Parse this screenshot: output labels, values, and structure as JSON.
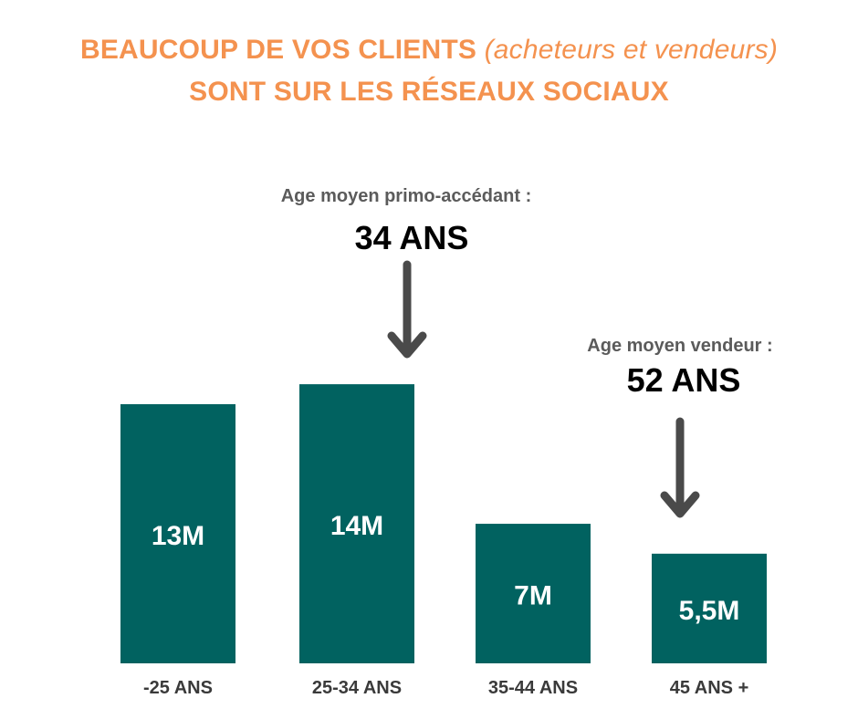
{
  "heading": {
    "line1_bold": "BEAUCOUP DE VOS CLIENTS",
    "line1_italic": "(acheteurs et vendeurs)",
    "line2": "SONT SUR LES RÉSEAUX SOCIAUX"
  },
  "annotations": [
    {
      "label": "Age moyen primo-accédant :",
      "value": "34 ANS",
      "points_to": "25-34 ANS"
    },
    {
      "label": "Age moyen vendeur :",
      "value": "52 ANS",
      "points_to": "45 ANS +"
    }
  ],
  "chart_data": {
    "type": "bar",
    "categories": [
      "-25 ANS",
      "25-34 ANS",
      "35-44 ANS",
      "45 ANS +"
    ],
    "values": [
      13,
      14,
      7,
      5.5
    ],
    "value_labels": [
      "13M",
      "14M",
      "7M",
      "5,5M"
    ],
    "unit": "M",
    "grid": false,
    "legend": "none",
    "colors": {
      "bar": "#016260",
      "bar_label": "#ffffff",
      "category_label": "#3a3a3a",
      "arrow": "#4a4a4a",
      "title": "#f4924f"
    }
  }
}
